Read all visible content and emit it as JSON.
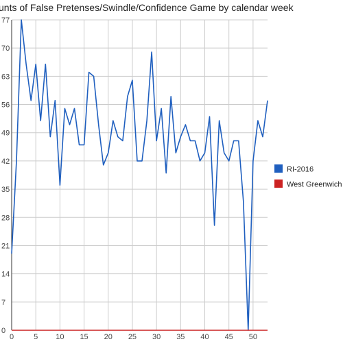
{
  "chart_data": {
    "type": "line",
    "title": "unts of False Pretenses/Swindle/Confidence Game by calendar week",
    "xlabel": "",
    "ylabel": "",
    "xlim": [
      0,
      53
    ],
    "ylim": [
      0,
      77
    ],
    "x_ticks": [
      0,
      5,
      10,
      15,
      20,
      25,
      30,
      35,
      40,
      45,
      50
    ],
    "y_ticks": [
      0,
      7,
      14,
      21,
      28,
      35,
      42,
      49,
      56,
      63,
      70,
      77
    ],
    "grid": true,
    "legend_position": "right",
    "series": [
      {
        "name": "RI-2016",
        "color": "#1f5fbf",
        "x": [
          0,
          1,
          2,
          3,
          4,
          5,
          6,
          7,
          8,
          9,
          10,
          11,
          12,
          13,
          14,
          15,
          16,
          17,
          18,
          19,
          20,
          21,
          22,
          23,
          24,
          25,
          26,
          27,
          28,
          29,
          30,
          31,
          32,
          33,
          34,
          35,
          36,
          37,
          38,
          39,
          40,
          41,
          42,
          43,
          44,
          45,
          46,
          47,
          48,
          49,
          50,
          51,
          52,
          53
        ],
        "values": [
          19,
          42,
          77,
          66,
          57,
          66,
          52,
          66,
          48,
          57,
          36,
          55,
          51,
          55,
          46,
          46,
          64,
          63,
          51,
          41,
          44,
          52,
          48,
          47,
          58,
          62,
          42,
          42,
          52,
          69,
          47,
          55,
          39,
          58,
          44,
          48,
          51,
          47,
          47,
          42,
          44,
          53,
          26,
          52,
          44,
          42,
          47,
          47,
          32,
          0,
          42,
          52,
          48,
          57
        ]
      },
      {
        "name": "West Greenwich",
        "color": "#cc2222",
        "x": [
          0,
          53
        ],
        "values": [
          0,
          0
        ]
      }
    ]
  }
}
